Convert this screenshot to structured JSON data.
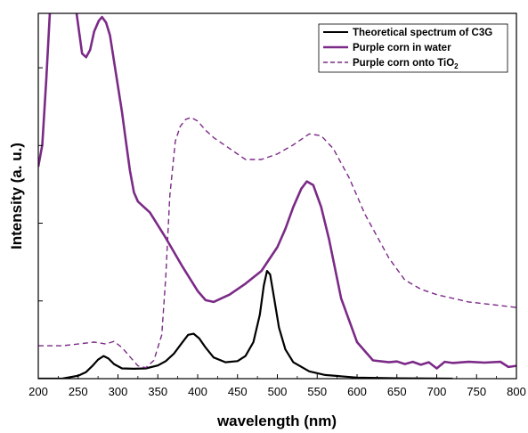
{
  "chart_data": {
    "type": "line",
    "title": "",
    "xlabel": "wavelength (nm)",
    "ylabel": "Intensity (a. u.)",
    "xlim": [
      200,
      800
    ],
    "ylim": [
      0,
      1
    ],
    "x_ticks": [
      200,
      250,
      300,
      350,
      400,
      450,
      500,
      550,
      600,
      650,
      700,
      750,
      800
    ],
    "y_tick_labels_shown": false,
    "grid": false,
    "legend_position": "top-right",
    "colors": {
      "black": "#000000",
      "purple": "#7b2a87"
    },
    "series": [
      {
        "name": "Theoretical spectrum of C3G",
        "color": "#000000",
        "style": "solid",
        "x": [
          200,
          230,
          250,
          260,
          268,
          275,
          282,
          288,
          295,
          305,
          320,
          335,
          350,
          360,
          370,
          380,
          388,
          395,
          402,
          410,
          420,
          435,
          450,
          460,
          470,
          478,
          483,
          487,
          491,
          496,
          502,
          510,
          520,
          540,
          560,
          600,
          650,
          720
        ],
        "y": [
          0.0,
          0.0,
          0.008,
          0.018,
          0.035,
          0.052,
          0.062,
          0.055,
          0.04,
          0.028,
          0.027,
          0.028,
          0.036,
          0.048,
          0.068,
          0.097,
          0.12,
          0.123,
          0.11,
          0.085,
          0.058,
          0.045,
          0.048,
          0.062,
          0.1,
          0.175,
          0.255,
          0.295,
          0.285,
          0.22,
          0.14,
          0.08,
          0.045,
          0.02,
          0.01,
          0.003,
          0.001,
          0.0
        ]
      },
      {
        "name": "Purple corn in water",
        "color": "#7b2a87",
        "style": "solid",
        "x": [
          200,
          205,
          210,
          215,
          230,
          248,
          255,
          260,
          265,
          270,
          276,
          280,
          285,
          290,
          295,
          300,
          305,
          310,
          315,
          320,
          325,
          330,
          340,
          350,
          360,
          380,
          400,
          410,
          420,
          440,
          460,
          480,
          500,
          510,
          520,
          530,
          537,
          545,
          555,
          565,
          580,
          600,
          620,
          640,
          650,
          660,
          670,
          680,
          690,
          700,
          710,
          720,
          740,
          760,
          780,
          790,
          800
        ],
        "y": [
          0.58,
          0.64,
          0.82,
          1.02,
          1.1,
          1.0,
          0.89,
          0.88,
          0.9,
          0.95,
          0.98,
          0.99,
          0.975,
          0.94,
          0.87,
          0.8,
          0.73,
          0.65,
          0.57,
          0.51,
          0.485,
          0.475,
          0.455,
          0.42,
          0.385,
          0.31,
          0.24,
          0.215,
          0.21,
          0.23,
          0.26,
          0.295,
          0.36,
          0.41,
          0.47,
          0.52,
          0.54,
          0.53,
          0.47,
          0.38,
          0.22,
          0.1,
          0.05,
          0.045,
          0.047,
          0.04,
          0.046,
          0.038,
          0.045,
          0.028,
          0.046,
          0.043,
          0.046,
          0.044,
          0.046,
          0.032,
          0.035
        ]
      },
      {
        "name": "Purple corn onto TiO2",
        "color": "#7b2a87",
        "style": "dashed",
        "x": [
          200,
          230,
          250,
          270,
          285,
          295,
          305,
          315,
          325,
          335,
          345,
          355,
          360,
          365,
          372,
          378,
          385,
          392,
          400,
          410,
          420,
          440,
          460,
          480,
          500,
          520,
          540,
          555,
          570,
          590,
          610,
          640,
          660,
          680,
          700,
          720,
          740,
          760,
          780,
          800
        ],
        "y": [
          0.09,
          0.09,
          0.095,
          0.1,
          0.095,
          0.102,
          0.085,
          0.06,
          0.035,
          0.03,
          0.05,
          0.12,
          0.28,
          0.5,
          0.65,
          0.69,
          0.71,
          0.715,
          0.705,
          0.68,
          0.66,
          0.63,
          0.6,
          0.6,
          0.615,
          0.64,
          0.67,
          0.665,
          0.63,
          0.55,
          0.45,
          0.33,
          0.27,
          0.245,
          0.23,
          0.22,
          0.21,
          0.205,
          0.2,
          0.195
        ]
      }
    ]
  }
}
